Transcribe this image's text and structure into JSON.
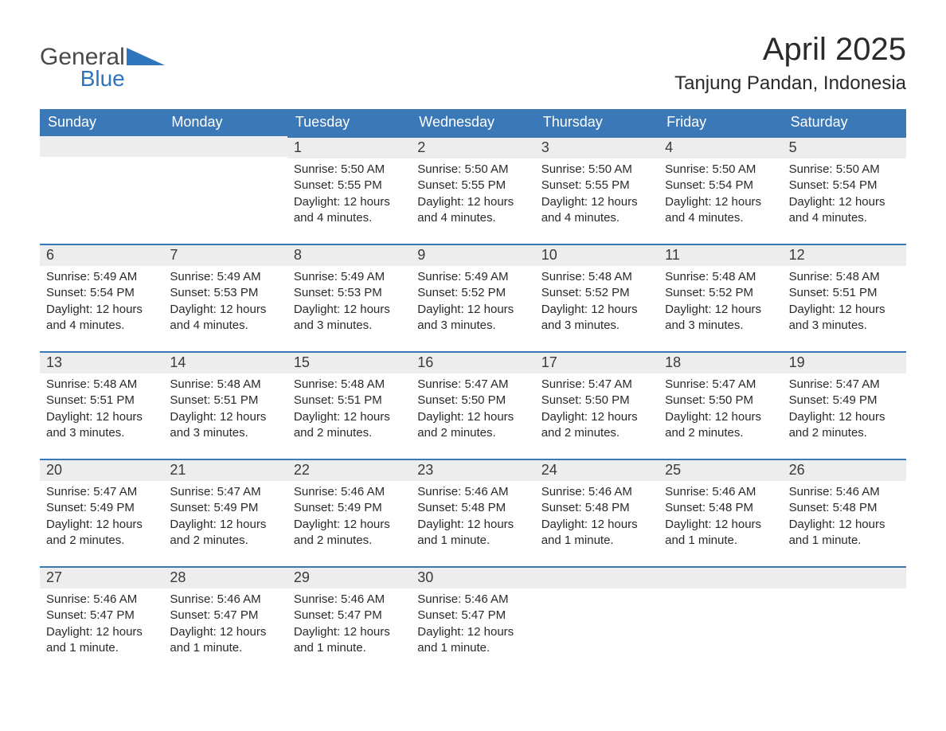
{
  "brand": {
    "name_top": "General",
    "name_bottom": "Blue",
    "text_color": "#4a4a4a",
    "accent_color": "#2f75bb"
  },
  "title": {
    "month_year": "April 2025",
    "location": "Tanjung Pandan, Indonesia"
  },
  "colors": {
    "header_bg": "#3b78b8",
    "header_text": "#ffffff",
    "daynum_bg": "#ededed",
    "daynum_border": "#3b78b8",
    "body_text": "#2a2a2a",
    "page_bg": "#ffffff"
  },
  "days_of_week": [
    "Sunday",
    "Monday",
    "Tuesday",
    "Wednesday",
    "Thursday",
    "Friday",
    "Saturday"
  ],
  "weeks": [
    [
      {
        "num": "",
        "sunrise": "",
        "sunset": "",
        "daylight": ""
      },
      {
        "num": "",
        "sunrise": "",
        "sunset": "",
        "daylight": ""
      },
      {
        "num": "1",
        "sunrise": "Sunrise: 5:50 AM",
        "sunset": "Sunset: 5:55 PM",
        "daylight": "Daylight: 12 hours and 4 minutes."
      },
      {
        "num": "2",
        "sunrise": "Sunrise: 5:50 AM",
        "sunset": "Sunset: 5:55 PM",
        "daylight": "Daylight: 12 hours and 4 minutes."
      },
      {
        "num": "3",
        "sunrise": "Sunrise: 5:50 AM",
        "sunset": "Sunset: 5:55 PM",
        "daylight": "Daylight: 12 hours and 4 minutes."
      },
      {
        "num": "4",
        "sunrise": "Sunrise: 5:50 AM",
        "sunset": "Sunset: 5:54 PM",
        "daylight": "Daylight: 12 hours and 4 minutes."
      },
      {
        "num": "5",
        "sunrise": "Sunrise: 5:50 AM",
        "sunset": "Sunset: 5:54 PM",
        "daylight": "Daylight: 12 hours and 4 minutes."
      }
    ],
    [
      {
        "num": "6",
        "sunrise": "Sunrise: 5:49 AM",
        "sunset": "Sunset: 5:54 PM",
        "daylight": "Daylight: 12 hours and 4 minutes."
      },
      {
        "num": "7",
        "sunrise": "Sunrise: 5:49 AM",
        "sunset": "Sunset: 5:53 PM",
        "daylight": "Daylight: 12 hours and 4 minutes."
      },
      {
        "num": "8",
        "sunrise": "Sunrise: 5:49 AM",
        "sunset": "Sunset: 5:53 PM",
        "daylight": "Daylight: 12 hours and 3 minutes."
      },
      {
        "num": "9",
        "sunrise": "Sunrise: 5:49 AM",
        "sunset": "Sunset: 5:52 PM",
        "daylight": "Daylight: 12 hours and 3 minutes."
      },
      {
        "num": "10",
        "sunrise": "Sunrise: 5:48 AM",
        "sunset": "Sunset: 5:52 PM",
        "daylight": "Daylight: 12 hours and 3 minutes."
      },
      {
        "num": "11",
        "sunrise": "Sunrise: 5:48 AM",
        "sunset": "Sunset: 5:52 PM",
        "daylight": "Daylight: 12 hours and 3 minutes."
      },
      {
        "num": "12",
        "sunrise": "Sunrise: 5:48 AM",
        "sunset": "Sunset: 5:51 PM",
        "daylight": "Daylight: 12 hours and 3 minutes."
      }
    ],
    [
      {
        "num": "13",
        "sunrise": "Sunrise: 5:48 AM",
        "sunset": "Sunset: 5:51 PM",
        "daylight": "Daylight: 12 hours and 3 minutes."
      },
      {
        "num": "14",
        "sunrise": "Sunrise: 5:48 AM",
        "sunset": "Sunset: 5:51 PM",
        "daylight": "Daylight: 12 hours and 3 minutes."
      },
      {
        "num": "15",
        "sunrise": "Sunrise: 5:48 AM",
        "sunset": "Sunset: 5:51 PM",
        "daylight": "Daylight: 12 hours and 2 minutes."
      },
      {
        "num": "16",
        "sunrise": "Sunrise: 5:47 AM",
        "sunset": "Sunset: 5:50 PM",
        "daylight": "Daylight: 12 hours and 2 minutes."
      },
      {
        "num": "17",
        "sunrise": "Sunrise: 5:47 AM",
        "sunset": "Sunset: 5:50 PM",
        "daylight": "Daylight: 12 hours and 2 minutes."
      },
      {
        "num": "18",
        "sunrise": "Sunrise: 5:47 AM",
        "sunset": "Sunset: 5:50 PM",
        "daylight": "Daylight: 12 hours and 2 minutes."
      },
      {
        "num": "19",
        "sunrise": "Sunrise: 5:47 AM",
        "sunset": "Sunset: 5:49 PM",
        "daylight": "Daylight: 12 hours and 2 minutes."
      }
    ],
    [
      {
        "num": "20",
        "sunrise": "Sunrise: 5:47 AM",
        "sunset": "Sunset: 5:49 PM",
        "daylight": "Daylight: 12 hours and 2 minutes."
      },
      {
        "num": "21",
        "sunrise": "Sunrise: 5:47 AM",
        "sunset": "Sunset: 5:49 PM",
        "daylight": "Daylight: 12 hours and 2 minutes."
      },
      {
        "num": "22",
        "sunrise": "Sunrise: 5:46 AM",
        "sunset": "Sunset: 5:49 PM",
        "daylight": "Daylight: 12 hours and 2 minutes."
      },
      {
        "num": "23",
        "sunrise": "Sunrise: 5:46 AM",
        "sunset": "Sunset: 5:48 PM",
        "daylight": "Daylight: 12 hours and 1 minute."
      },
      {
        "num": "24",
        "sunrise": "Sunrise: 5:46 AM",
        "sunset": "Sunset: 5:48 PM",
        "daylight": "Daylight: 12 hours and 1 minute."
      },
      {
        "num": "25",
        "sunrise": "Sunrise: 5:46 AM",
        "sunset": "Sunset: 5:48 PM",
        "daylight": "Daylight: 12 hours and 1 minute."
      },
      {
        "num": "26",
        "sunrise": "Sunrise: 5:46 AM",
        "sunset": "Sunset: 5:48 PM",
        "daylight": "Daylight: 12 hours and 1 minute."
      }
    ],
    [
      {
        "num": "27",
        "sunrise": "Sunrise: 5:46 AM",
        "sunset": "Sunset: 5:47 PM",
        "daylight": "Daylight: 12 hours and 1 minute."
      },
      {
        "num": "28",
        "sunrise": "Sunrise: 5:46 AM",
        "sunset": "Sunset: 5:47 PM",
        "daylight": "Daylight: 12 hours and 1 minute."
      },
      {
        "num": "29",
        "sunrise": "Sunrise: 5:46 AM",
        "sunset": "Sunset: 5:47 PM",
        "daylight": "Daylight: 12 hours and 1 minute."
      },
      {
        "num": "30",
        "sunrise": "Sunrise: 5:46 AM",
        "sunset": "Sunset: 5:47 PM",
        "daylight": "Daylight: 12 hours and 1 minute."
      },
      {
        "num": "",
        "sunrise": "",
        "sunset": "",
        "daylight": ""
      },
      {
        "num": "",
        "sunrise": "",
        "sunset": "",
        "daylight": ""
      },
      {
        "num": "",
        "sunrise": "",
        "sunset": "",
        "daylight": ""
      }
    ]
  ]
}
